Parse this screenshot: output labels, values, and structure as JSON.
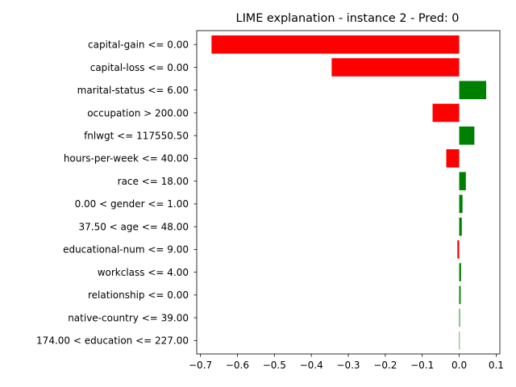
{
  "chart_data": {
    "type": "bar",
    "orientation": "horizontal",
    "title": "LIME explanation - instance 2 - Pred: 0",
    "xlabel": "",
    "ylabel": "",
    "xlim": [
      -0.71,
      0.11
    ],
    "xticks": [
      -0.7,
      -0.6,
      -0.5,
      -0.4,
      -0.3,
      -0.2,
      -0.1,
      0.0,
      0.1
    ],
    "xtick_labels": [
      "−0.7",
      "−0.6",
      "−0.5",
      "−0.4",
      "−0.3",
      "−0.2",
      "−0.1",
      "0.0",
      "0.1"
    ],
    "grid": false,
    "legend": "none",
    "positive_color": "#008000",
    "negative_color": "#ff0000",
    "categories": [
      "capital-gain <= 0.00",
      "capital-loss <= 0.00",
      "marital-status <= 6.00",
      "occupation > 200.00",
      "fnlwgt <= 117550.50",
      "hours-per-week <= 40.00",
      "race <= 18.00",
      "0.00 < gender <= 1.00",
      "37.50 < age <= 48.00",
      "educational-num <= 9.00",
      "workclass <= 4.00",
      "relationship <= 0.00",
      "native-country <= 39.00",
      "174.00 < education <= 227.00"
    ],
    "values": [
      -0.67,
      -0.345,
      0.073,
      -0.072,
      0.041,
      -0.035,
      0.018,
      0.009,
      0.007,
      -0.005,
      0.005,
      0.004,
      0.002,
      0.001
    ]
  }
}
